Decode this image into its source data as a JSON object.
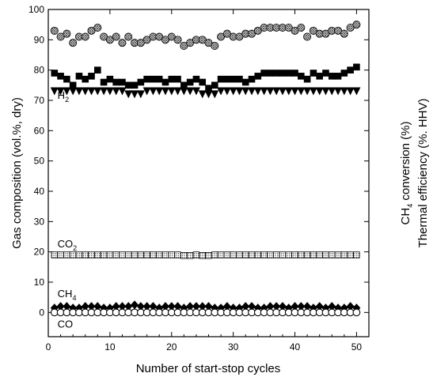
{
  "chart_data": {
    "type": "scatter",
    "xlabel": "Number of start-stop cycles",
    "ylabel_left": "Gas composition (vol.%, dry)",
    "ylabel_right_1": {
      "pre": "CH",
      "sub": "4",
      "post": " conversion (%)"
    },
    "ylabel_right_2": "Thermal efficiency (%. HHV)",
    "xlim": [
      0,
      52
    ],
    "ylim": [
      -8,
      100
    ],
    "x_ticks": [
      "0",
      "10",
      "20",
      "30",
      "40",
      "50"
    ],
    "y_ticks": [
      "0",
      "10",
      "20",
      "30",
      "40",
      "50",
      "60",
      "70",
      "80",
      "90",
      "100"
    ],
    "x": [
      1,
      2,
      3,
      4,
      5,
      6,
      7,
      8,
      9,
      10,
      11,
      12,
      13,
      14,
      15,
      16,
      17,
      18,
      19,
      20,
      21,
      22,
      23,
      24,
      25,
      26,
      27,
      28,
      29,
      30,
      31,
      32,
      33,
      34,
      35,
      36,
      37,
      38,
      39,
      40,
      41,
      42,
      43,
      44,
      45,
      46,
      47,
      48,
      49,
      50
    ],
    "series": [
      {
        "key": "ch4conv",
        "marker": "crosshatch-circle",
        "values": [
          93,
          91,
          92,
          89,
          91,
          91,
          93,
          94,
          91,
          90,
          91,
          89,
          91,
          89,
          89,
          90,
          91,
          91,
          90,
          91,
          90,
          88,
          89,
          90,
          90,
          89,
          88,
          91,
          92,
          91,
          91,
          92,
          92,
          93,
          94,
          94,
          94,
          94,
          94,
          93,
          94,
          91,
          93,
          92,
          92,
          93,
          93,
          92,
          94,
          95
        ]
      },
      {
        "key": "eff",
        "marker": "filled-square",
        "values": [
          79,
          78,
          77,
          75,
          78,
          77,
          78,
          80,
          76,
          77,
          76,
          76,
          75,
          75,
          76,
          77,
          77,
          77,
          76,
          77,
          77,
          75,
          76,
          77,
          76,
          74,
          75,
          77,
          77,
          77,
          77,
          76,
          77,
          78,
          79,
          79,
          79,
          79,
          79,
          79,
          78,
          77,
          79,
          78,
          79,
          78,
          78,
          79,
          80,
          81
        ]
      },
      {
        "key": "h2",
        "name_pre": "H",
        "name_sub": "2",
        "marker": "filled-triangle-down",
        "values": [
          73,
          73,
          73,
          73,
          73,
          73,
          73,
          73,
          73,
          73,
          73,
          73,
          72,
          72,
          72,
          73,
          73,
          73,
          73,
          73,
          73,
          73,
          73,
          73,
          72,
          72,
          72,
          73,
          73,
          73,
          73,
          73,
          73,
          73,
          73,
          73,
          73,
          73,
          73,
          73,
          73,
          73,
          73,
          73,
          73,
          73,
          73,
          73,
          73,
          73
        ]
      },
      {
        "key": "co2",
        "name_pre": "CO",
        "name_sub": "2",
        "marker": "dotted-square",
        "values": [
          19,
          19,
          19,
          19,
          19,
          19,
          19,
          19,
          19,
          19,
          19,
          19,
          19,
          19,
          19,
          19,
          19,
          19,
          19,
          19,
          19,
          18.8,
          18.8,
          19,
          18.8,
          18.8,
          19,
          19,
          19,
          19,
          19,
          19,
          19,
          19,
          19,
          19,
          19,
          19,
          19,
          19,
          19,
          19,
          19,
          19,
          19,
          19,
          19,
          19,
          19,
          19
        ]
      },
      {
        "key": "ch4",
        "name_pre": "CH",
        "name_sub": "4",
        "marker": "filled-diamond",
        "values": [
          1.5,
          2,
          2,
          1.5,
          1.5,
          2,
          2,
          2,
          1.5,
          1.5,
          2,
          2,
          2,
          2.5,
          2,
          2,
          2,
          1.5,
          2,
          2,
          2,
          1.5,
          2,
          2,
          2,
          2,
          1.5,
          1.5,
          2,
          1.5,
          1.5,
          2,
          2,
          1.5,
          1.5,
          2,
          2,
          2,
          1.5,
          2,
          2,
          2,
          1.5,
          2,
          1.5,
          2,
          1.5,
          1.5,
          2,
          1.5
        ]
      },
      {
        "key": "co",
        "name_pre": "CO",
        "name_sub": "",
        "marker": "open-circle",
        "values": [
          0,
          0,
          0,
          0,
          0,
          0,
          0,
          0,
          0,
          0,
          0,
          0,
          0,
          0,
          0,
          0,
          0,
          0,
          0,
          0,
          0,
          0,
          0,
          0,
          0,
          0,
          0,
          0,
          0,
          0,
          0,
          0,
          0,
          0,
          0,
          0,
          0,
          0,
          0,
          0,
          0,
          0,
          0,
          0,
          0,
          0,
          0,
          0,
          0,
          0
        ]
      }
    ],
    "colors": {
      "axis": "#000000",
      "marker": "#000000",
      "hatch_fill": "#b0b0b0"
    }
  }
}
